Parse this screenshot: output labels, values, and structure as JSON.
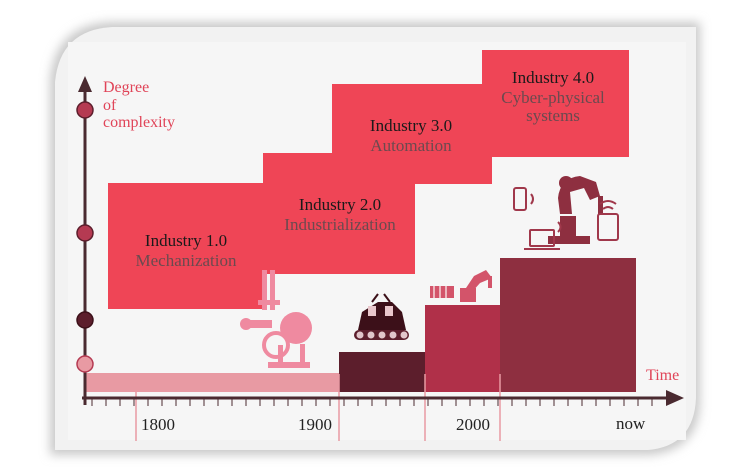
{
  "y_axis_label": [
    "Degree",
    "of",
    "complexity"
  ],
  "x_axis_label": "Time",
  "timeline": [
    "1800",
    "1900",
    "2000",
    "now"
  ],
  "stages": [
    {
      "title": "Industry 1.0",
      "subtitle": "Mechanization"
    },
    {
      "title": "Industry 2.0",
      "subtitle": "Industrialization"
    },
    {
      "title": "Industry 3.0",
      "subtitle": "Automation"
    },
    {
      "title": "Industry 4.0",
      "subtitle": [
        "Cyber-physical",
        "systems"
      ]
    }
  ],
  "colors": {
    "accent": "#ef3f54",
    "axis": "#4a2a30",
    "stage_box": "#ef4556",
    "bar_1": "#e89aa3",
    "bar_2": "#5c1e2c",
    "bar_3": "#b03049",
    "bar_4": "#8e2f40"
  },
  "icons": [
    "steam-engine-icon",
    "tank-robot-icon",
    "robot-arm-icon",
    "cyber-robot-icon",
    "phone-icon",
    "laptop-icon",
    "tablet-icon"
  ]
}
